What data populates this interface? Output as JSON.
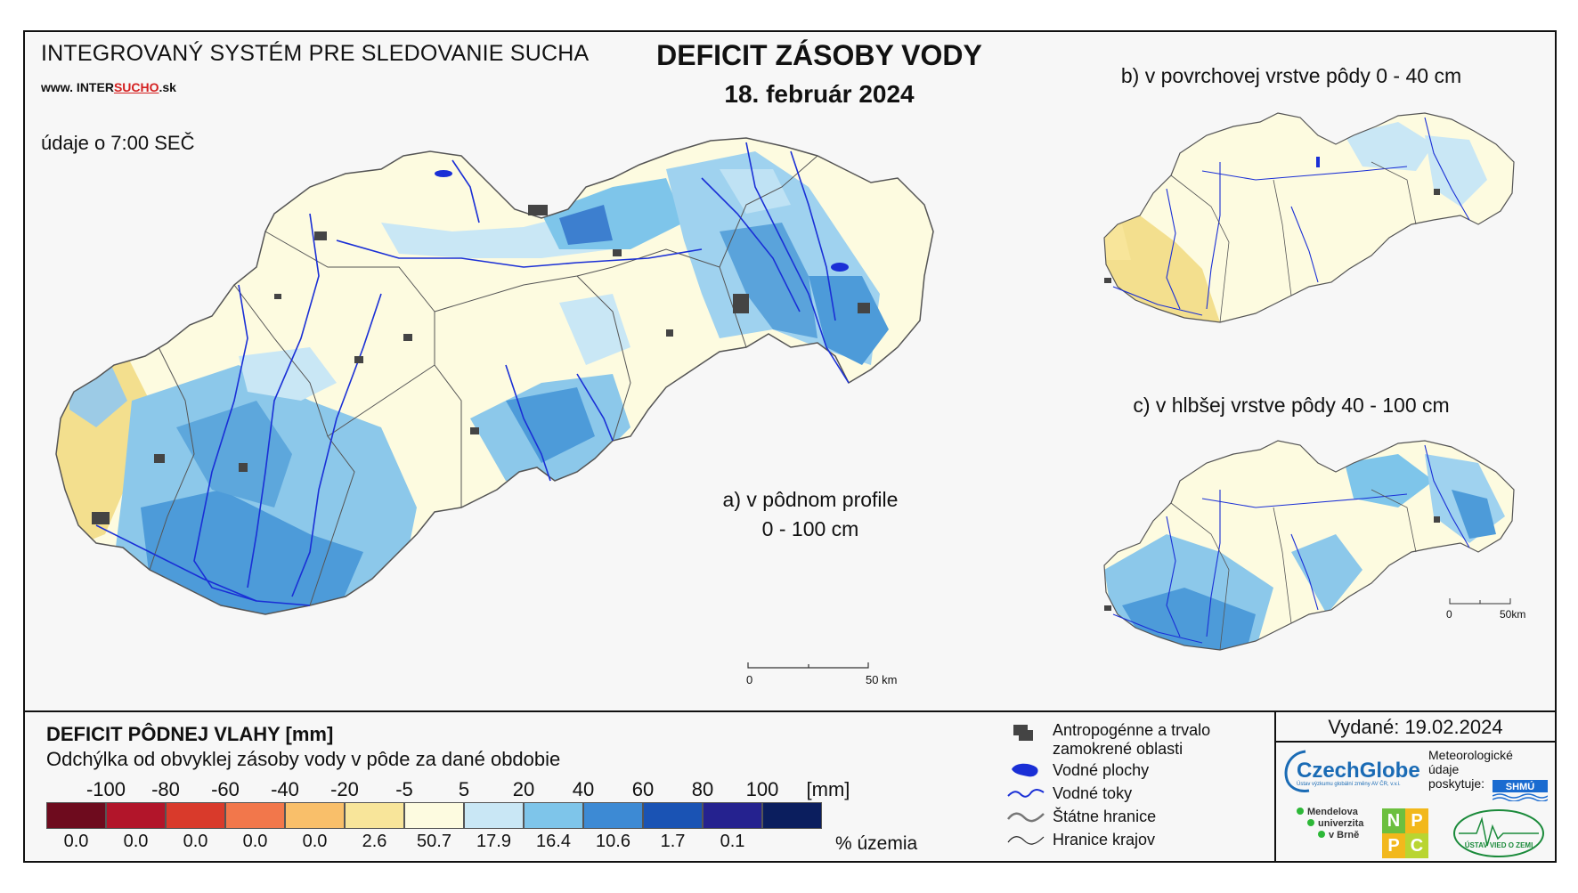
{
  "header": {
    "system_title": "INTEGROVANÝ SYSTÉM PRE SLEDOVANIE SUCHA",
    "site_prefix": "www. INTER",
    "site_underlined": "SUCHO",
    "site_suffix": ".sk",
    "observation": "údaje o 7:00 SEČ",
    "main_title": "DEFICIT ZÁSOBY VODY",
    "date": "18. február 2024"
  },
  "maps": {
    "a_label_line1": "a) v pôdnom profile",
    "a_label_line2": "0 - 100 cm",
    "b_label": "b) v povrchovej vrstve pôdy 0 - 40 cm",
    "c_label": "c) v hlbšej vrstve pôdy 40 - 100 cm",
    "scale_main_zero": "0",
    "scale_main_end": "50 km",
    "scale_small_zero": "0",
    "scale_small_end": "50km"
  },
  "legend": {
    "title": "DEFICIT PÔDNEJ VLAHY [mm]",
    "subtitle": "Odchýlka od obvyklej zásoby vody v pôde za dané obdobie",
    "ticks": [
      "-100",
      "-80",
      "-60",
      "-40",
      "-20",
      "-5",
      "5",
      "20",
      "40",
      "60",
      "80",
      "100"
    ],
    "unit": "[mm]",
    "colors": [
      "#6e0b1e",
      "#b2152a",
      "#d93a2b",
      "#f2774b",
      "#f9bf6a",
      "#f8e59a",
      "#fdfbe0",
      "#c9e7f5",
      "#7ec5ea",
      "#3d8ad4",
      "#1a53b4",
      "#25228f",
      "#0b1e5e"
    ],
    "percentages": [
      "0.0",
      "0.0",
      "0.0",
      "0.0",
      "0.0",
      "2.6",
      "50.7",
      "17.9",
      "16.4",
      "10.6",
      "1.7",
      "0.1"
    ],
    "percent_unit": "% územia"
  },
  "key": {
    "urban": "Antropogénne a trvalo",
    "urban_line2": "zamokrené oblasti",
    "water_bodies": "Vodné plochy",
    "rivers": "Vodné toky",
    "state_border": "Štátne hranice",
    "region_border": "Hranice krajov"
  },
  "footer": {
    "issued": "Vydané: 19.02.2024",
    "czechglobe": "CzechGlobe",
    "czechglobe_sub": "Ústav výzkumu globální změny AV ČR, v.v.i.",
    "meteo_line1": "Meteorologické",
    "meteo_line2": "údaje",
    "meteo_line3": "poskytuje:",
    "shmu": "SHMÚ",
    "mendel_line1": "Mendelova",
    "mendel_line2": "univerzita",
    "mendel_line3": "v Brně",
    "nppc": [
      "N",
      "P",
      "P",
      "C"
    ],
    "uvz": "ÚSTAV VIED O ZEMI"
  },
  "colors": {
    "river": "#1a2fd6",
    "urban": "#444444",
    "frame": "#111111"
  }
}
